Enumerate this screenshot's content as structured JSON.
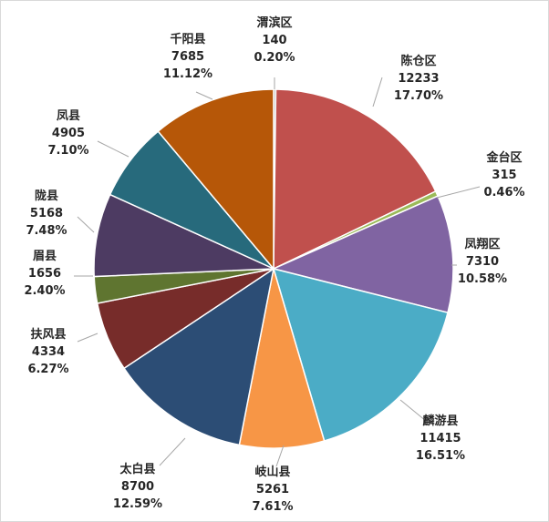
{
  "chart_data": {
    "type": "pie",
    "title": "",
    "start_category": "渭滨区",
    "direction": "clockwise",
    "slices": [
      {
        "name": "渭滨区",
        "value": "140",
        "percent": "0.20%",
        "color": "#a6a6a6"
      },
      {
        "name": "陈仓区",
        "value": "12233",
        "percent": "17.70%",
        "color": "#c0504d"
      },
      {
        "name": "金台区",
        "value": "315",
        "percent": "0.46%",
        "color": "#9bbb59"
      },
      {
        "name": "凤翔区",
        "value": "7310",
        "percent": "10.58%",
        "color": "#8064a2"
      },
      {
        "name": "麟游县",
        "value": "11415",
        "percent": "16.51%",
        "color": "#4bacc6"
      },
      {
        "name": "岐山县",
        "value": "5261",
        "percent": "7.61%",
        "color": "#f79646"
      },
      {
        "name": "太白县",
        "value": "8700",
        "percent": "12.59%",
        "color": "#2c4d75"
      },
      {
        "name": "扶风县",
        "value": "4334",
        "percent": "6.27%",
        "color": "#772c2a"
      },
      {
        "name": "眉县",
        "value": "1656",
        "percent": "2.40%",
        "color": "#5f7530"
      },
      {
        "name": "陇县",
        "value": "5168",
        "percent": "7.48%",
        "color": "#4d3b62"
      },
      {
        "name": "凤县",
        "value": "4905",
        "percent": "7.10%",
        "color": "#276a7c"
      },
      {
        "name": "千阳县",
        "value": "7685",
        "percent": "11.12%",
        "color": "#b65708"
      }
    ]
  }
}
